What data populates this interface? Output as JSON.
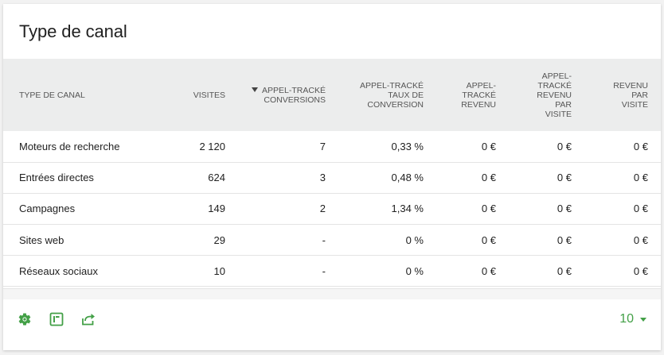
{
  "widget": {
    "title": "Type de canal"
  },
  "table": {
    "columns": [
      {
        "line1": "TYPE DE CANAL"
      },
      {
        "line1": "VISITES"
      },
      {
        "line1": "APPEL-TRACKÉ",
        "line2": "CONVERSIONS",
        "sorted": true
      },
      {
        "line1": "APPEL-TRACKÉ",
        "line2": "TAUX DE",
        "line3": "CONVERSION"
      },
      {
        "line1": "APPEL-",
        "line2": "TRACKÉ",
        "line3": "REVENU"
      },
      {
        "line1": "APPEL-",
        "line2": "TRACKÉ",
        "line3": "REVENU",
        "line4": "PAR",
        "line5": "VISITE"
      },
      {
        "line1": "REVENU",
        "line2": "PAR",
        "line3": "VISITE"
      }
    ],
    "rows": [
      {
        "label": "Moteurs de recherche",
        "visits": "2 120",
        "conversions": "7",
        "rate": "0,33 %",
        "revenue": "0 €",
        "revenue_per_visit_tracked": "0 €",
        "revenue_per_visit": "0 €"
      },
      {
        "label": "Entrées directes",
        "visits": "624",
        "conversions": "3",
        "rate": "0,48 %",
        "revenue": "0 €",
        "revenue_per_visit_tracked": "0 €",
        "revenue_per_visit": "0 €"
      },
      {
        "label": "Campagnes",
        "visits": "149",
        "conversions": "2",
        "rate": "1,34 %",
        "revenue": "0 €",
        "revenue_per_visit_tracked": "0 €",
        "revenue_per_visit": "0 €"
      },
      {
        "label": "Sites web",
        "visits": "29",
        "conversions": "-",
        "rate": "0 %",
        "revenue": "0 €",
        "revenue_per_visit_tracked": "0 €",
        "revenue_per_visit": "0 €"
      },
      {
        "label": "Réseaux sociaux",
        "visits": "10",
        "conversions": "-",
        "rate": "0 %",
        "revenue": "0 €",
        "revenue_per_visit_tracked": "0 €",
        "revenue_per_visit": "0 €"
      }
    ]
  },
  "footer": {
    "icons": [
      "settings-icon",
      "visualization-icon",
      "export-icon"
    ],
    "limit_value": "10"
  },
  "colors": {
    "accent": "#43a047",
    "header_bg": "#eceded"
  }
}
